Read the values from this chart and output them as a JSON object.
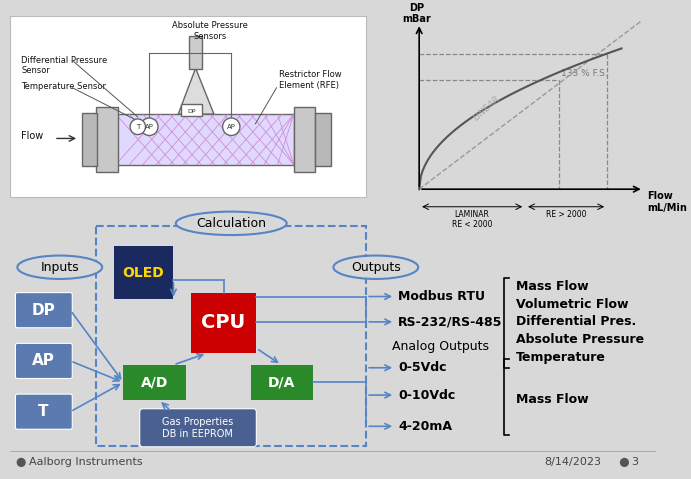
{
  "bg_color": "#d8d8d8",
  "title_footer": "Aalborg Instruments",
  "date_footer": "8/14/2023",
  "page_footer": "3",
  "dc": {
    "oled_bg": "#1a2a5e",
    "oled_text": "#ffd700",
    "cpu_bg": "#cc0000",
    "ad_bg": "#2a8a2a",
    "input_bg": "#5a7ab0",
    "gas_bg": "#4a6090",
    "arrow": "#5585c5",
    "dash_box": "#5585c5",
    "ellipse": "#5585c5"
  }
}
